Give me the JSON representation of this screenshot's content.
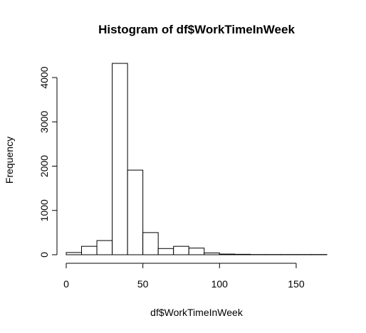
{
  "chart_data": {
    "type": "bar",
    "title": "Histogram of df$WorkTimeInWeek",
    "xlabel": "df$WorkTimeInWeek",
    "ylabel": "Frequency",
    "bins": [
      [
        0,
        10
      ],
      [
        10,
        20
      ],
      [
        20,
        30
      ],
      [
        30,
        40
      ],
      [
        40,
        50
      ],
      [
        50,
        60
      ],
      [
        60,
        70
      ],
      [
        70,
        80
      ],
      [
        80,
        90
      ],
      [
        90,
        100
      ],
      [
        100,
        110
      ],
      [
        110,
        120
      ],
      [
        120,
        130
      ],
      [
        130,
        140
      ],
      [
        140,
        150
      ],
      [
        150,
        160
      ],
      [
        160,
        170
      ]
    ],
    "values": [
      50,
      190,
      320,
      4320,
      1910,
      500,
      140,
      190,
      150,
      40,
      15,
      10,
      5,
      5,
      5,
      5,
      5
    ],
    "xlim": [
      0,
      170
    ],
    "ylim": [
      0,
      4320
    ],
    "xticks": [
      0,
      50,
      100,
      150
    ],
    "yticks": [
      0,
      1000,
      2000,
      3000,
      4000
    ],
    "grid": false,
    "bar_fill": "#ffffff",
    "bar_stroke": "#000000"
  }
}
